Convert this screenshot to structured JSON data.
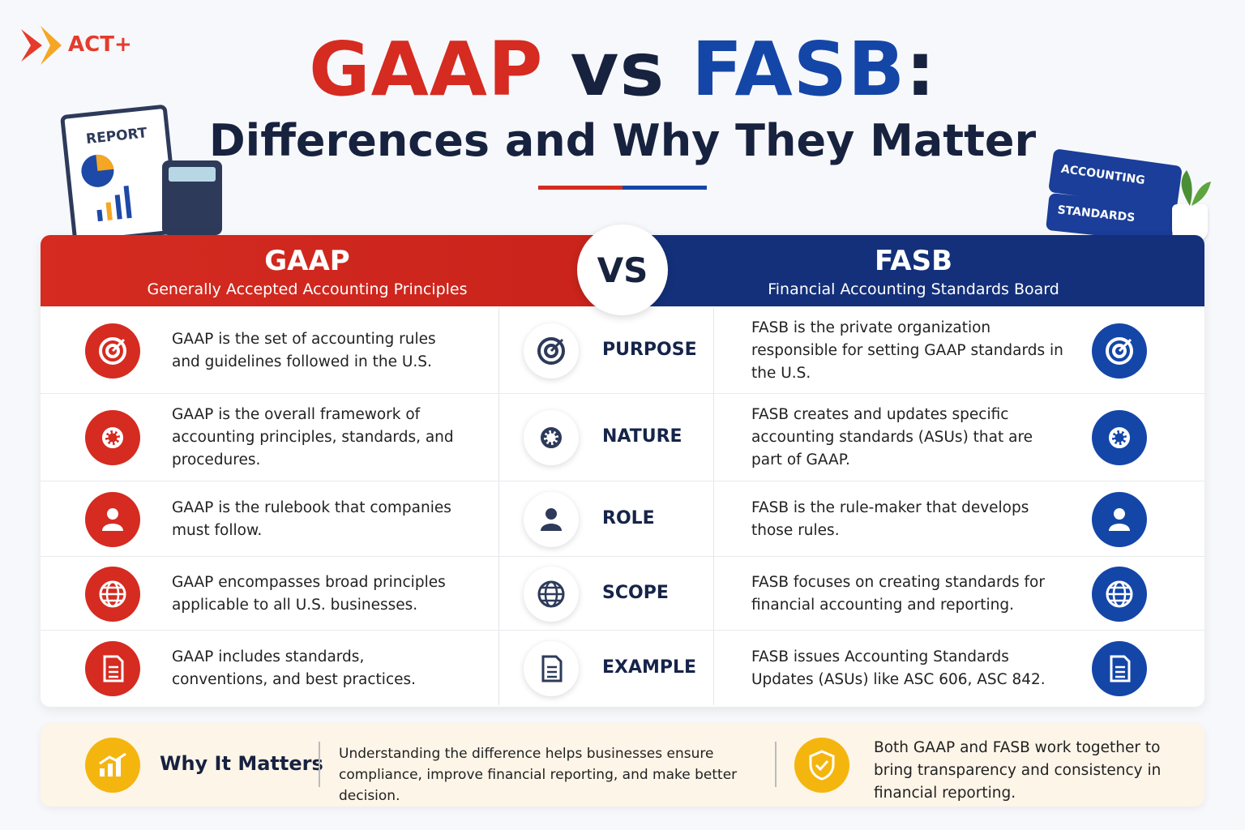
{
  "brand": "ACT+",
  "title": {
    "left": "GAAP",
    "middle": "vs",
    "right": "FASB",
    "colon": ":",
    "subtitle": "Differences and Why They Matter"
  },
  "illustrations": {
    "report": "REPORT",
    "book_top": "ACCOUNTING",
    "book_bottom": "STANDARDS"
  },
  "header": {
    "left": {
      "title": "GAAP",
      "subtitle": "Generally Accepted Accounting Principles"
    },
    "vs": "VS",
    "right": {
      "title": "FASB",
      "subtitle": "Financial Accounting Standards Board"
    }
  },
  "rows": [
    {
      "gaap": "GAAP is the set of accounting rules and guidelines followed in the U.S.",
      "aspect": "PURPOSE",
      "fasb": "FASB is the private organization responsible for setting GAAP standards in the U.S."
    },
    {
      "gaap": "GAAP is the overall framework of accounting principles, standards, and procedures.",
      "aspect": "NATURE",
      "fasb": "FASB creates and updates specific accounting standards (ASUs) that are part of GAAP."
    },
    {
      "gaap": "GAAP is the rulebook that companies must follow.",
      "aspect": "ROLE",
      "fasb": "FASB is the rule-maker that develops those rules."
    },
    {
      "gaap": "GAAP encompasses broad principles applicable to all U.S. businesses.",
      "aspect": "SCOPE",
      "fasb": "FASB focuses on creating standards for financial accounting and reporting."
    },
    {
      "gaap": "GAAP includes standards, conventions, and best practices.",
      "aspect": "EXAMPLE",
      "fasb": "FASB issues Accounting Standards Updates (ASUs) like ASC 606, ASC 842."
    }
  ],
  "footer": {
    "title": "Why It Matters",
    "text": "Understanding the difference helps businesses ensure compliance, improve financial reporting, and make better decision.",
    "note": "Both GAAP and FASB work together to bring transparency and consistency in financial reporting."
  }
}
